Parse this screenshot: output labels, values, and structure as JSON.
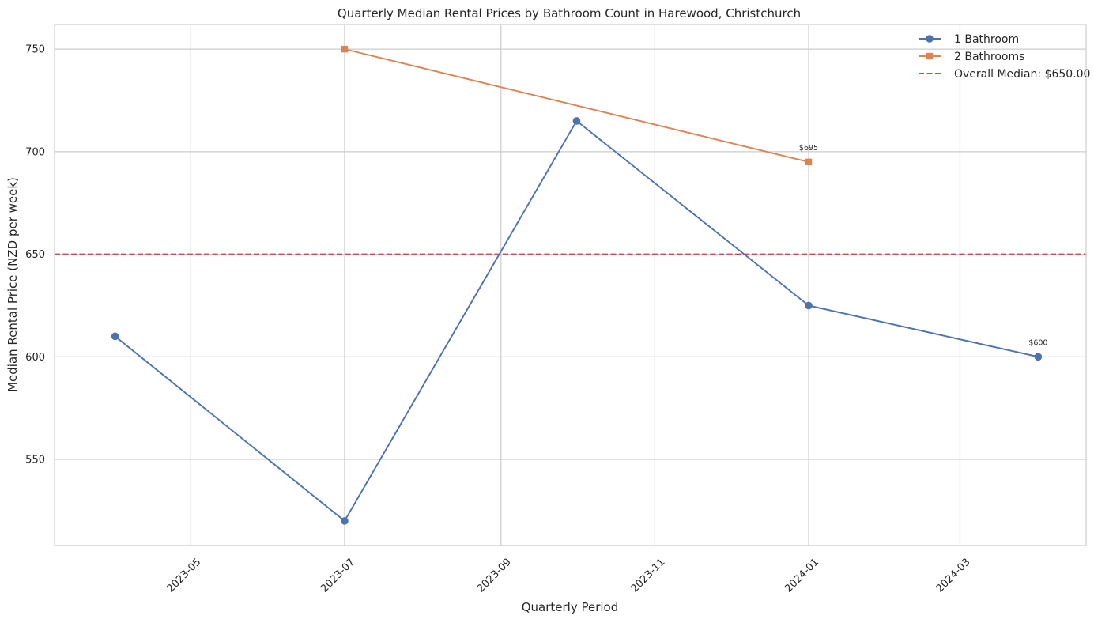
{
  "chart_data": {
    "type": "line",
    "title": "Quarterly Median Rental Prices by Bathroom Count in Harewood, Christchurch",
    "xlabel": "Quarterly Period",
    "ylabel": "Median Rental Price (NZD per week)",
    "x_ticks": [
      "2023-05",
      "2023-07",
      "2023-09",
      "2023-11",
      "2024-01",
      "2024-03"
    ],
    "y_ticks": [
      550,
      600,
      650,
      700,
      750
    ],
    "xlim": [
      "2023-03-08",
      "2024-04-20"
    ],
    "ylim": [
      508,
      762
    ],
    "grid": true,
    "legend_position": "top-right",
    "series": [
      {
        "name": "1 Bathroom",
        "color": "#4c72b0",
        "marker": "circle",
        "x": [
          "2023-04-01",
          "2023-07-01",
          "2023-10-01",
          "2024-01-01",
          "2024-04-01"
        ],
        "values": [
          610,
          520,
          715,
          625,
          600
        ]
      },
      {
        "name": "2 Bathrooms",
        "color": "#dd8452",
        "marker": "square",
        "x": [
          "2023-07-01",
          "2024-01-01"
        ],
        "values": [
          750,
          695
        ]
      }
    ],
    "reference_lines": [
      {
        "label": "Overall Median: $650.00",
        "value": 650,
        "color": "#c44e52",
        "style": "dashed"
      }
    ],
    "annotations": [
      {
        "text": "$695",
        "series": "2 Bathrooms",
        "x": "2024-01-01",
        "value": 695
      },
      {
        "text": "$600",
        "series": "1 Bathroom",
        "x": "2024-04-01",
        "value": 600
      }
    ]
  }
}
